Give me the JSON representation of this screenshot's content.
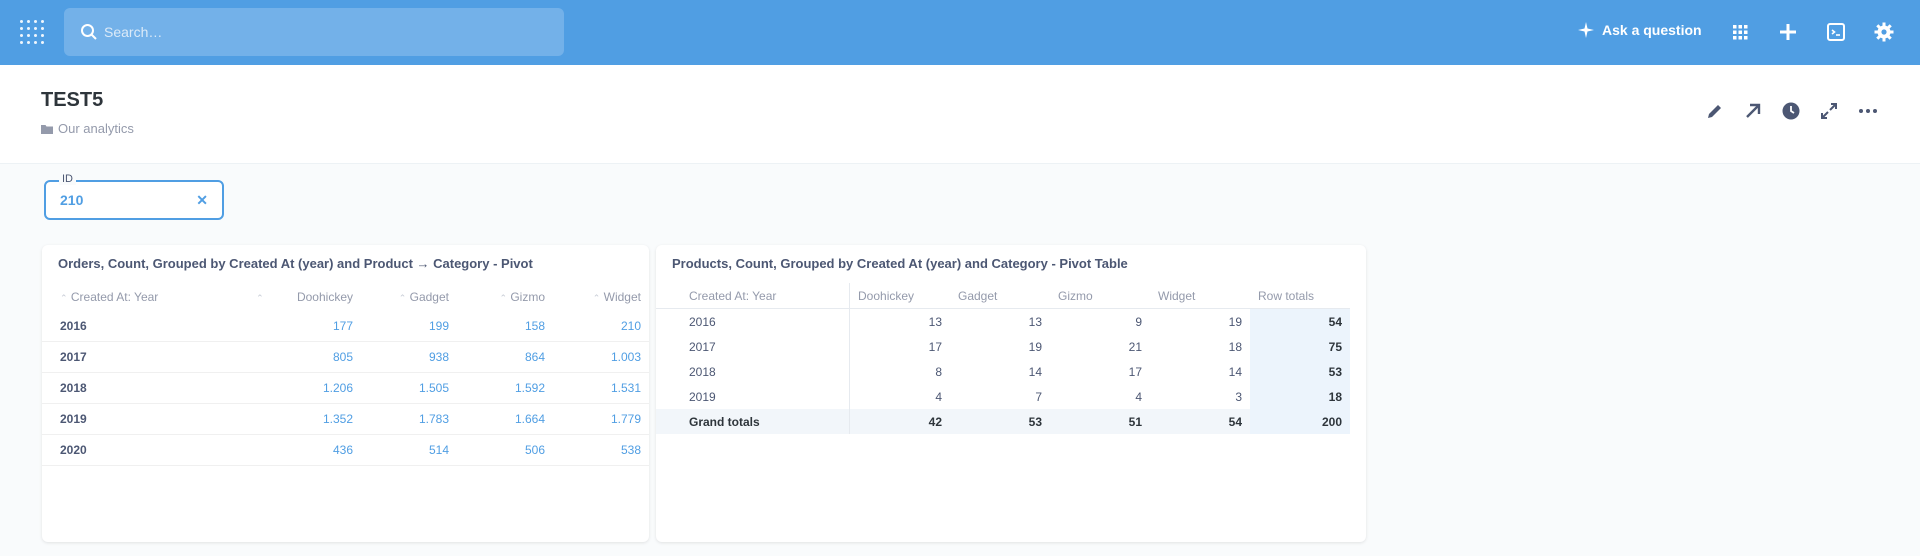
{
  "nav": {
    "search_placeholder": "Search…",
    "ask_label": "Ask a question",
    "icons": [
      "grid-icon",
      "plus-icon",
      "sql-editor-icon",
      "gear-icon"
    ]
  },
  "dashboard": {
    "title": "TEST5",
    "collection": "Our analytics"
  },
  "filter": {
    "label": "ID",
    "value": "210"
  },
  "card1": {
    "title": "Orders, Count, Grouped by Created At (year) and Product → Category - Pivot",
    "headers": [
      "Created At: Year",
      "Doohickey",
      "Gadget",
      "Gizmo",
      "Widget"
    ],
    "rows": [
      [
        "2016",
        "177",
        "199",
        "158",
        "210"
      ],
      [
        "2017",
        "805",
        "938",
        "864",
        "1.003"
      ],
      [
        "2018",
        "1.206",
        "1.505",
        "1.592",
        "1.531"
      ],
      [
        "2019",
        "1.352",
        "1.783",
        "1.664",
        "1.779"
      ],
      [
        "2020",
        "436",
        "514",
        "506",
        "538"
      ]
    ]
  },
  "card2": {
    "title": "Products, Count, Grouped by Created At (year) and Category - Pivot Table",
    "headers": [
      "Created At: Year",
      "Doohickey",
      "Gadget",
      "Gizmo",
      "Widget",
      "Row totals"
    ],
    "rows": [
      [
        "2016",
        "13",
        "13",
        "9",
        "19",
        "54"
      ],
      [
        "2017",
        "17",
        "19",
        "21",
        "18",
        "75"
      ],
      [
        "2018",
        "8",
        "14",
        "17",
        "14",
        "53"
      ],
      [
        "2019",
        "4",
        "7",
        "4",
        "3",
        "18"
      ]
    ],
    "grand": [
      "Grand totals",
      "42",
      "53",
      "51",
      "54",
      "200"
    ]
  },
  "colors": {
    "brand": "#509ee3",
    "text": "#4c5773",
    "muted": "#949aab"
  }
}
